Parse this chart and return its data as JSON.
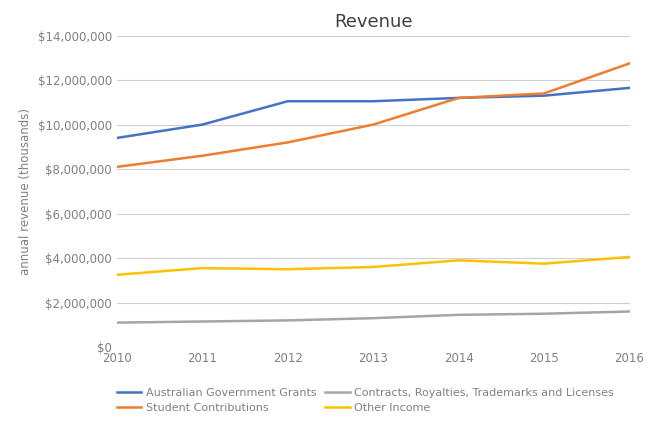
{
  "title": "Revenue",
  "ylabel": "annual revenue (thousands)",
  "years": [
    2010,
    2011,
    2012,
    2013,
    2014,
    2015,
    2016
  ],
  "series": [
    {
      "label": "Australian Government Grants",
      "color": "#4472C4",
      "values": [
        9400000,
        10000000,
        11050000,
        11050000,
        11200000,
        11300000,
        11650000
      ]
    },
    {
      "label": "Student Contributions",
      "color": "#ED7D31",
      "values": [
        8100000,
        8600000,
        9200000,
        10000000,
        11200000,
        11400000,
        12750000
      ]
    },
    {
      "label": "Contracts, Royalties, Trademarks and Licenses",
      "color": "#A5A5A5",
      "values": [
        1100000,
        1150000,
        1200000,
        1300000,
        1450000,
        1500000,
        1600000
      ]
    },
    {
      "label": "Other Income",
      "color": "#FFC000",
      "values": [
        3250000,
        3550000,
        3500000,
        3600000,
        3900000,
        3750000,
        4050000
      ]
    }
  ],
  "ylim": [
    0,
    14000000
  ],
  "yticks": [
    0,
    2000000,
    4000000,
    6000000,
    8000000,
    10000000,
    12000000,
    14000000
  ],
  "background_color": "#FFFFFF",
  "grid_color": "#D0D0D0",
  "title_fontsize": 13,
  "axis_label_fontsize": 8.5,
  "tick_fontsize": 8.5,
  "legend_fontsize": 8,
  "line_width": 1.8,
  "tick_color": "#808080",
  "title_color": "#404040",
  "label_color": "#808080"
}
